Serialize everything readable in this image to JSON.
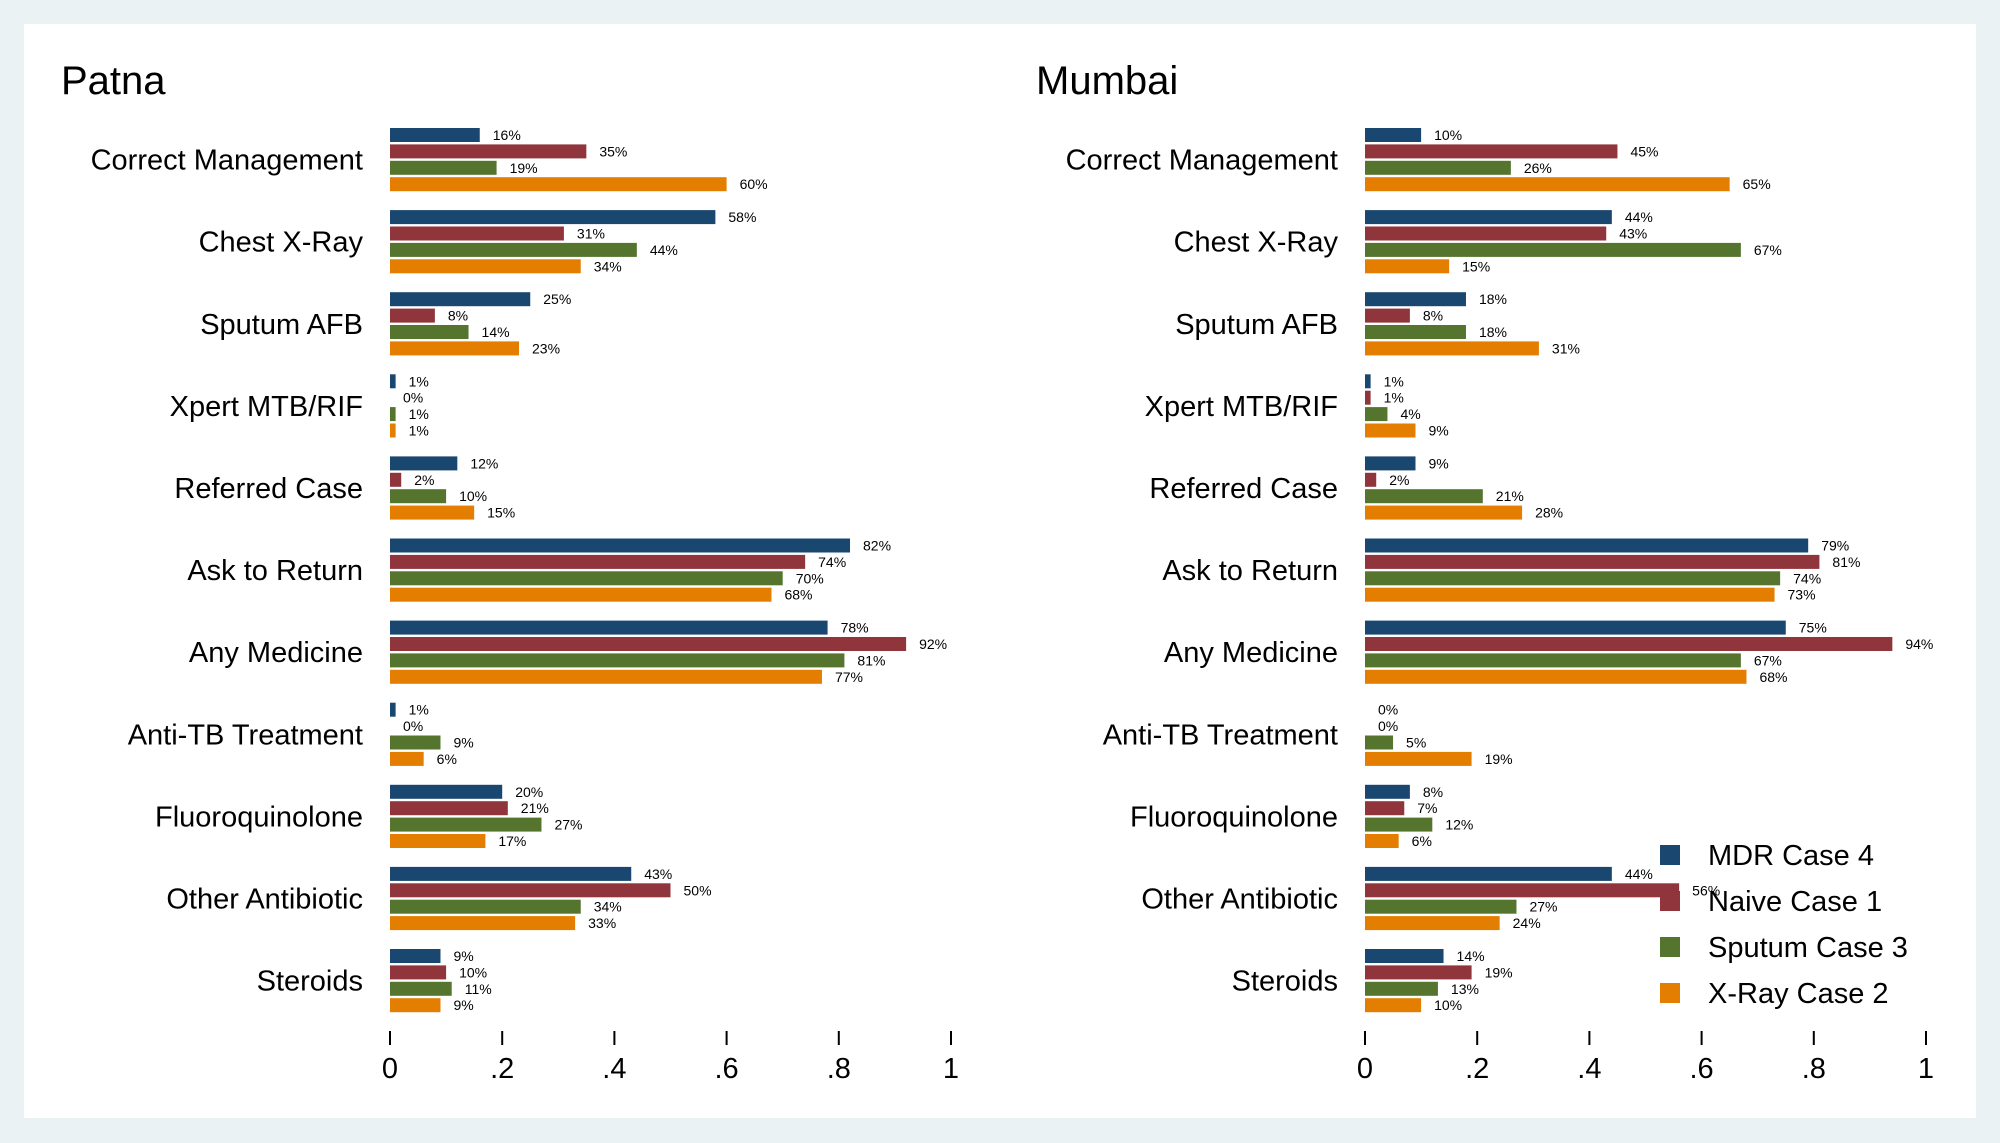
{
  "colors": {
    "mdr": "#1a476f",
    "naive": "#90353b",
    "sputum": "#55752f",
    "xray": "#e37e00",
    "background": "#eaf2f3"
  },
  "chart_data": [
    {
      "type": "bar",
      "orientation": "horizontal",
      "title": "Patna",
      "xlim": [
        0,
        1
      ],
      "xticks": [
        "0",
        ".2",
        ".4",
        ".6",
        ".8",
        "1"
      ],
      "categories": [
        "Correct Management",
        "Chest X-Ray",
        "Sputum AFB",
        "Xpert MTB/RIF",
        "Referred Case",
        "Ask to Return",
        "Any Medicine",
        "Anti-TB Treatment",
        "Fluoroquinolone",
        "Other Antibiotic",
        "Steroids"
      ],
      "series": [
        {
          "name": "MDR Case 4",
          "values": [
            0.16,
            0.58,
            0.25,
            0.01,
            0.12,
            0.82,
            0.78,
            0.01,
            0.2,
            0.43,
            0.09
          ],
          "labels": [
            "16%",
            "58%",
            "25%",
            "1%",
            "12%",
            "82%",
            "78%",
            "1%",
            "20%",
            "43%",
            "9%"
          ]
        },
        {
          "name": "Naive Case 1",
          "values": [
            0.35,
            0.31,
            0.08,
            0.0,
            0.02,
            0.74,
            0.92,
            0.0,
            0.21,
            0.5,
            0.1
          ],
          "labels": [
            "35%",
            "31%",
            "8%",
            "0%",
            "2%",
            "74%",
            "92%",
            "0%",
            "21%",
            "50%",
            "10%"
          ]
        },
        {
          "name": "Sputum Case 3",
          "values": [
            0.19,
            0.44,
            0.14,
            0.01,
            0.1,
            0.7,
            0.81,
            0.09,
            0.27,
            0.34,
            0.11
          ],
          "labels": [
            "19%",
            "44%",
            "14%",
            "1%",
            "10%",
            "70%",
            "81%",
            "9%",
            "27%",
            "34%",
            "11%"
          ]
        },
        {
          "name": "X-Ray Case 2",
          "values": [
            0.6,
            0.34,
            0.23,
            0.01,
            0.15,
            0.68,
            0.77,
            0.06,
            0.17,
            0.33,
            0.09
          ],
          "labels": [
            "60%",
            "34%",
            "23%",
            "1%",
            "15%",
            "68%",
            "77%",
            "6%",
            "17%",
            "33%",
            "9%"
          ]
        }
      ]
    },
    {
      "type": "bar",
      "orientation": "horizontal",
      "title": "Mumbai",
      "xlim": [
        0,
        1
      ],
      "xticks": [
        "0",
        ".2",
        ".4",
        ".6",
        ".8",
        "1"
      ],
      "categories": [
        "Correct Management",
        "Chest X-Ray",
        "Sputum AFB",
        "Xpert MTB/RIF",
        "Referred Case",
        "Ask to Return",
        "Any Medicine",
        "Anti-TB Treatment",
        "Fluoroquinolone",
        "Other Antibiotic",
        "Steroids"
      ],
      "series": [
        {
          "name": "MDR Case 4",
          "values": [
            0.1,
            0.44,
            0.18,
            0.01,
            0.09,
            0.79,
            0.75,
            0.0,
            0.08,
            0.44,
            0.14
          ],
          "labels": [
            "10%",
            "44%",
            "18%",
            "1%",
            "9%",
            "79%",
            "75%",
            "0%",
            "8%",
            "44%",
            "14%"
          ]
        },
        {
          "name": "Naive Case 1",
          "values": [
            0.45,
            0.43,
            0.08,
            0.01,
            0.02,
            0.81,
            0.94,
            0.0,
            0.07,
            0.56,
            0.19
          ],
          "labels": [
            "45%",
            "43%",
            "8%",
            "1%",
            "2%",
            "81%",
            "94%",
            "0%",
            "7%",
            "56%",
            "19%"
          ]
        },
        {
          "name": "Sputum Case 3",
          "values": [
            0.26,
            0.67,
            0.18,
            0.04,
            0.21,
            0.74,
            0.67,
            0.05,
            0.12,
            0.27,
            0.13
          ],
          "labels": [
            "26%",
            "67%",
            "18%",
            "4%",
            "21%",
            "74%",
            "67%",
            "5%",
            "12%",
            "27%",
            "13%"
          ]
        },
        {
          "name": "X-Ray Case 2",
          "values": [
            0.65,
            0.15,
            0.31,
            0.09,
            0.28,
            0.73,
            0.68,
            0.19,
            0.06,
            0.24,
            0.1
          ],
          "labels": [
            "65%",
            "15%",
            "31%",
            "9%",
            "28%",
            "73%",
            "68%",
            "19%",
            "6%",
            "24%",
            "10%"
          ]
        }
      ]
    }
  ],
  "legend": {
    "placement": "bottom-right of Mumbai panel",
    "items": [
      {
        "label": "MDR Case 4",
        "color": "#1a476f"
      },
      {
        "label": "Naive Case 1",
        "color": "#90353b"
      },
      {
        "label": "Sputum Case 3",
        "color": "#55752f"
      },
      {
        "label": "X-Ray Case 2",
        "color": "#e37e00"
      }
    ]
  }
}
